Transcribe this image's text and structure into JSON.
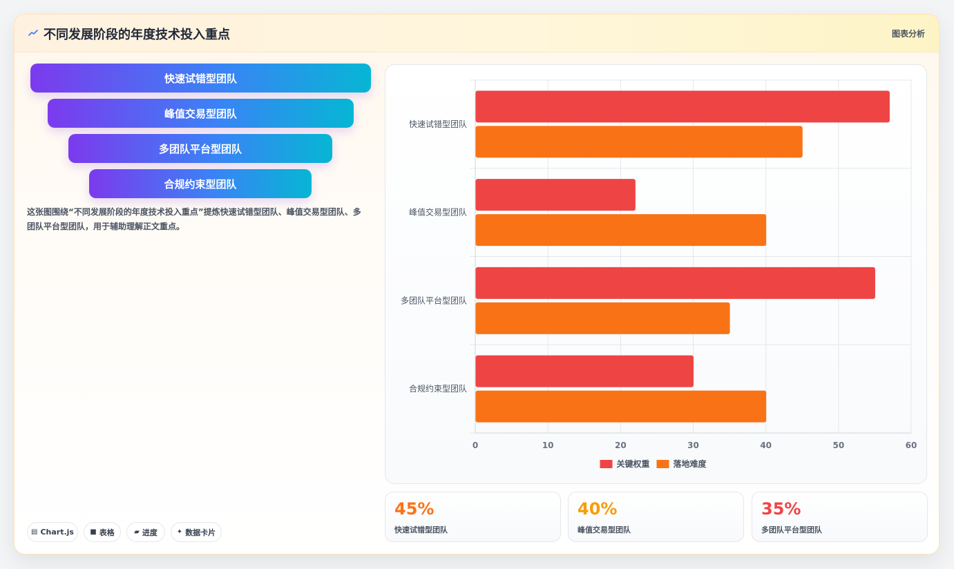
{
  "header": {
    "title": "不同发展阶段的年度技术投入重点",
    "tag": "图表分析",
    "icon": "trend-line-icon"
  },
  "funnel": [
    {
      "label": "快速试错型团队"
    },
    {
      "label": "峰值交易型团队"
    },
    {
      "label": "多团队平台型团队"
    },
    {
      "label": "合规约束型团队"
    }
  ],
  "description": "这张图围绕“不同发展阶段的年度技术投入重点”提炼快速试错型团队、峰值交易型团队、多团队平台型团队，用于辅助理解正文重点。",
  "pills": [
    {
      "icon": "chart-icon",
      "label": "Chart.js"
    },
    {
      "icon": "table-icon",
      "label": "表格"
    },
    {
      "icon": "progress-icon",
      "label": "进度"
    },
    {
      "icon": "sparkle-icon",
      "label": "数据卡片"
    }
  ],
  "chart_data": {
    "type": "bar",
    "orientation": "horizontal",
    "categories": [
      "快速试错型团队",
      "峰值交易型团队",
      "多团队平台型团队",
      "合规约束型团队"
    ],
    "series": [
      {
        "name": "关键权重",
        "values": [
          57,
          22,
          55,
          30
        ],
        "color": "#ef4444"
      },
      {
        "name": "落地难度",
        "values": [
          45,
          40,
          35,
          40
        ],
        "color": "#f97316"
      }
    ],
    "xlim": [
      0,
      60
    ],
    "xticks": [
      "0",
      "10",
      "20",
      "30",
      "40",
      "50",
      "60"
    ],
    "grid": true,
    "legend": "bottom"
  },
  "stats": [
    {
      "value": "45%",
      "label": "快速试错型团队",
      "color": "#f97316"
    },
    {
      "value": "40%",
      "label": "峰值交易型团队",
      "color": "#f59e0b"
    },
    {
      "value": "35%",
      "label": "多团队平台型团队",
      "color": "#ef4444"
    }
  ]
}
